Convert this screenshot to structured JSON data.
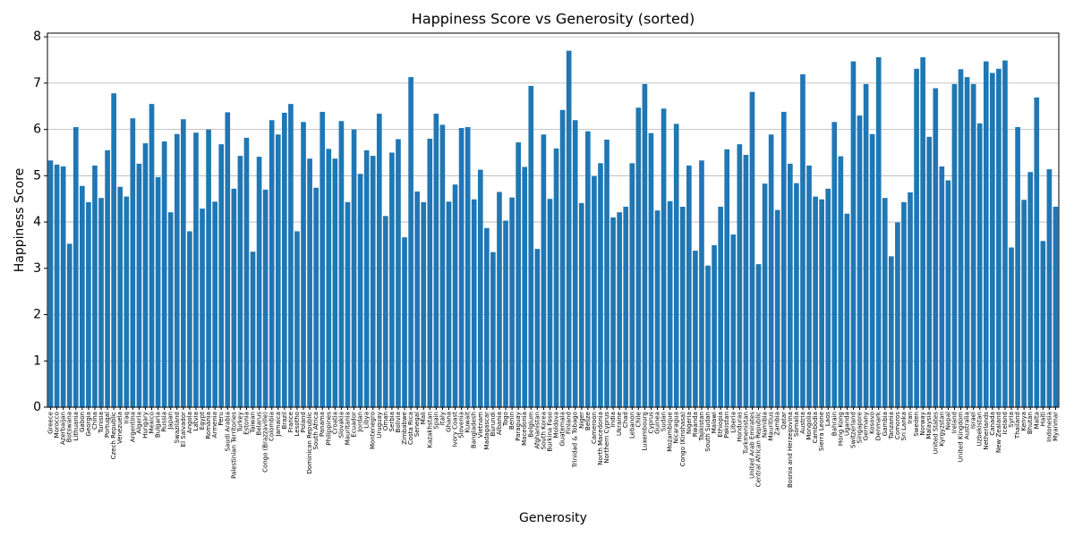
{
  "chart_data": {
    "type": "bar",
    "title": "Happiness Score vs Generosity (sorted)",
    "x_label": "Generosity",
    "y_label": "Happiness Score",
    "color": "#1f77b4",
    "grid": true,
    "ylim": [
      0,
      8.08
    ],
    "yticks": [
      0,
      1,
      2,
      3,
      4,
      5,
      6,
      7,
      8
    ],
    "categories": [
      "Greece",
      "Morocco",
      "Azerbaijan",
      "Botswana",
      "Lithuania",
      "Gabon",
      "Georgia",
      "China",
      "Tunisia",
      "Portugal",
      "Czech Republic",
      "Venezuela",
      "Iraq",
      "Argentina",
      "Algeria",
      "Hungary",
      "Mexico",
      "Bulgaria",
      "Russia",
      "Japan",
      "Swaziland",
      "El Salvador",
      "Angola",
      "Latvia",
      "Egypt",
      "Romania",
      "Armenia",
      "Peru",
      "Saudi Arabia",
      "Palestinian Territories",
      "Turkey",
      "Estonia",
      "Taiwan",
      "Belarus",
      "Congo (Brazzaville)",
      "Colombia",
      "Jamaica",
      "Brazil",
      "France",
      "Lesotho",
      "Poland",
      "Dominican Republic",
      "South Africa",
      "Panama",
      "Philippines",
      "Croatia",
      "Slovakia",
      "Mauritania",
      "Ecuador",
      "Jordan",
      "Libya",
      "Montenegro",
      "Uruguay",
      "Oman",
      "Serbia",
      "Bolivia",
      "Zimbabwe",
      "Costa Rica",
      "Senegal",
      "Mali",
      "Kazakhstan",
      "Spain",
      "Italy",
      "Ghana",
      "Ivory Coast",
      "Slovenia",
      "Kuwait",
      "Bangladesh",
      "Vietnam",
      "Madagascar",
      "Burundi",
      "Albania",
      "Togo",
      "Benin",
      "Paraguay",
      "Macedonia",
      "Belgium",
      "Afghanistan",
      "South Korea",
      "Burkina Faso",
      "Moldova",
      "Guatemala",
      "Finland",
      "Trinidad & Tobago",
      "Niger",
      "Belize",
      "Cameroon",
      "North Macedonia",
      "Northern Cyprus",
      "India",
      "Ukraine",
      "Chad",
      "Lebanon",
      "Chile",
      "Luxembourg",
      "Cyprus",
      "Guinea",
      "Sudan",
      "Mozambique",
      "Nicaragua",
      "Congo (Kinshasa)",
      "Nigeria",
      "Rwanda",
      "Tajikistan",
      "South Sudan",
      "Malawi",
      "Ethiopia",
      "Pakistan",
      "Liberia",
      "Honduras",
      "Turkmenistan",
      "United Arab Emirates",
      "Central African Republic",
      "Namibia",
      "Mauritius",
      "Zambia",
      "Qatar",
      "Bosnia and Herzegovina",
      "Somalia",
      "Austria",
      "Mongolia",
      "Cambodia",
      "Sierra Leone",
      "Laos",
      "Bahrain",
      "Hong Kong",
      "Uganda",
      "Switzerland",
      "Singapore",
      "Germany",
      "Kosovo",
      "Denmark",
      "Gambia",
      "Tanzania",
      "Comoros",
      "Sri Lanka",
      "Iran",
      "Sweden",
      "Norway",
      "Malaysia",
      "United States",
      "Kyrgyzstan",
      "Nepal",
      "Ireland",
      "United Kingdom",
      "Australia",
      "Israel",
      "Uzbekistan",
      "Netherlands",
      "Canada",
      "New Zealand",
      "Iceland",
      "Syria",
      "Thailand",
      "Kenya",
      "Bhutan",
      "Malta",
      "Haiti",
      "Indonesia",
      "Myanmar"
    ],
    "values": [
      5.33,
      5.24,
      5.2,
      3.53,
      6.05,
      4.78,
      4.43,
      5.22,
      4.52,
      5.55,
      6.78,
      4.76,
      4.55,
      6.24,
      5.26,
      5.7,
      6.55,
      4.97,
      5.74,
      4.21,
      5.9,
      6.22,
      3.8,
      5.93,
      4.29,
      6.0,
      4.44,
      5.68,
      6.37,
      4.72,
      5.43,
      5.82,
      3.36,
      5.41,
      4.7,
      6.2,
      5.89,
      6.36,
      6.55,
      3.8,
      6.16,
      5.37,
      4.74,
      6.38,
      5.58,
      5.37,
      6.18,
      4.43,
      6.0,
      5.04,
      5.55,
      5.43,
      6.34,
      4.13,
      5.5,
      5.79,
      3.67,
      7.13,
      4.66,
      4.43,
      5.8,
      6.34,
      6.1,
      4.44,
      4.81,
      6.03,
      6.05,
      4.49,
      5.13,
      3.87,
      3.35,
      4.65,
      4.03,
      4.53,
      5.72,
      5.19,
      6.94,
      3.42,
      5.89,
      4.5,
      5.59,
      6.42,
      7.7,
      6.2,
      4.41,
      5.96,
      4.99,
      5.27,
      5.78,
      4.1,
      4.21,
      4.33,
      5.27,
      6.47,
      6.98,
      5.92,
      4.25,
      6.45,
      4.45,
      6.12,
      4.33,
      5.22,
      3.38,
      5.33,
      3.06,
      3.5,
      4.33,
      5.57,
      3.73,
      5.68,
      5.45,
      6.81,
      3.09,
      4.83,
      5.89,
      4.26,
      6.38,
      5.26,
      4.84,
      7.19,
      5.22,
      4.55,
      4.49,
      4.72,
      6.16,
      5.42,
      4.18,
      7.47,
      6.3,
      6.98,
      5.9,
      7.56,
      4.52,
      3.26,
      3.99,
      4.43,
      4.64,
      7.31,
      7.56,
      5.84,
      6.89,
      5.2,
      4.9,
      6.98,
      7.3,
      7.13,
      6.98,
      6.13,
      7.47,
      7.22,
      7.31,
      7.49,
      3.45,
      6.05,
      4.48,
      5.08,
      6.69,
      3.59,
      5.14,
      4.33
    ]
  }
}
